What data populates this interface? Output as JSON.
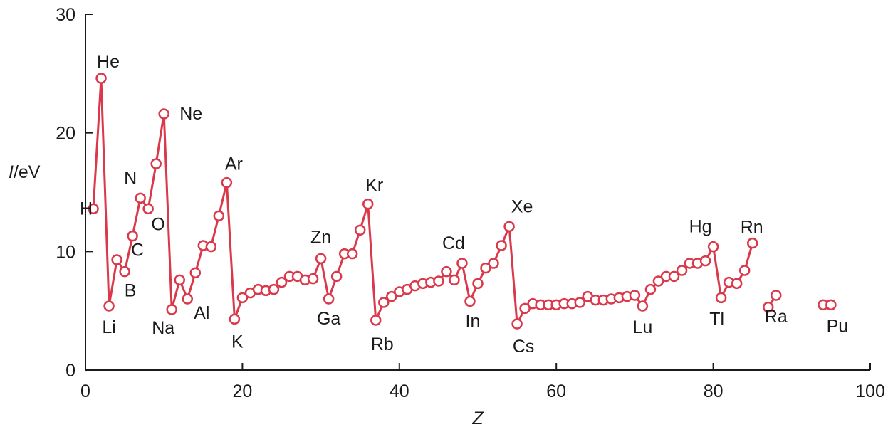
{
  "chart_data": {
    "type": "line",
    "xlabel": "Z",
    "ylabel": "I/eV",
    "xlim": [
      0,
      100
    ],
    "ylim": [
      0,
      30
    ],
    "xticks": [
      "0",
      "20",
      "40",
      "60",
      "80",
      "100"
    ],
    "yticks": [
      "0",
      "10",
      "20",
      "30"
    ],
    "grid": false,
    "colors": {
      "series": "#d9394a",
      "axis": "#1a1a1a",
      "marker_fill": "#ffffff"
    },
    "series": [
      {
        "segments": [
          [
            [
              1,
              13.6
            ],
            [
              2,
              24.6
            ],
            [
              3,
              5.4
            ],
            [
              4,
              9.3
            ],
            [
              5,
              8.3
            ],
            [
              6,
              11.3
            ],
            [
              7,
              14.5
            ],
            [
              8,
              13.6
            ],
            [
              9,
              17.4
            ],
            [
              10,
              21.6
            ],
            [
              11,
              5.1
            ],
            [
              12,
              7.6
            ],
            [
              13,
              6.0
            ],
            [
              14,
              8.2
            ],
            [
              15,
              10.5
            ],
            [
              16,
              10.4
            ],
            [
              17,
              13.0
            ],
            [
              18,
              15.8
            ],
            [
              19,
              4.3
            ],
            [
              20,
              6.1
            ],
            [
              21,
              6.5
            ],
            [
              22,
              6.8
            ],
            [
              23,
              6.7
            ],
            [
              24,
              6.8
            ],
            [
              25,
              7.4
            ],
            [
              26,
              7.9
            ],
            [
              27,
              7.9
            ],
            [
              28,
              7.6
            ],
            [
              29,
              7.7
            ],
            [
              30,
              9.4
            ],
            [
              31,
              6.0
            ],
            [
              32,
              7.9
            ],
            [
              33,
              9.8
            ],
            [
              34,
              9.8
            ],
            [
              35,
              11.8
            ],
            [
              36,
              14.0
            ],
            [
              37,
              4.2
            ],
            [
              38,
              5.7
            ],
            [
              39,
              6.2
            ],
            [
              40,
              6.6
            ],
            [
              41,
              6.8
            ],
            [
              42,
              7.1
            ],
            [
              43,
              7.3
            ],
            [
              44,
              7.4
            ],
            [
              45,
              7.5
            ],
            [
              46,
              8.3
            ],
            [
              47,
              7.6
            ],
            [
              48,
              9.0
            ],
            [
              49,
              5.8
            ],
            [
              50,
              7.3
            ],
            [
              51,
              8.6
            ],
            [
              52,
              9.0
            ],
            [
              53,
              10.5
            ],
            [
              54,
              12.1
            ],
            [
              55,
              3.9
            ],
            [
              56,
              5.2
            ],
            [
              57,
              5.6
            ],
            [
              58,
              5.5
            ],
            [
              59,
              5.5
            ],
            [
              60,
              5.5
            ],
            [
              61,
              5.6
            ],
            [
              62,
              5.6
            ],
            [
              63,
              5.7
            ],
            [
              64,
              6.2
            ],
            [
              65,
              5.9
            ],
            [
              66,
              5.9
            ],
            [
              67,
              6.0
            ],
            [
              68,
              6.1
            ],
            [
              69,
              6.2
            ],
            [
              70,
              6.3
            ],
            [
              71,
              5.4
            ],
            [
              72,
              6.8
            ],
            [
              73,
              7.5
            ],
            [
              74,
              7.9
            ],
            [
              75,
              7.9
            ],
            [
              76,
              8.4
            ],
            [
              77,
              9.0
            ],
            [
              78,
              9.0
            ],
            [
              79,
              9.2
            ],
            [
              80,
              10.4
            ],
            [
              81,
              6.1
            ],
            [
              82,
              7.4
            ],
            [
              83,
              7.3
            ],
            [
              84,
              8.4
            ],
            [
              85,
              10.7
            ]
          ],
          [
            [
              87,
              5.3
            ],
            [
              88,
              6.3
            ]
          ],
          [
            [
              94,
              5.5
            ],
            [
              95,
              5.5
            ]
          ]
        ]
      }
    ],
    "annotations": [
      {
        "text": "H",
        "z": 1
      },
      {
        "text": "He",
        "z": 2
      },
      {
        "text": "Li",
        "z": 3
      },
      {
        "text": "B",
        "z": 5
      },
      {
        "text": "C",
        "z": 6
      },
      {
        "text": "N",
        "z": 7
      },
      {
        "text": "O",
        "z": 8
      },
      {
        "text": "Ne",
        "z": 10
      },
      {
        "text": "Na",
        "z": 11
      },
      {
        "text": "Al",
        "z": 13
      },
      {
        "text": "Ar",
        "z": 18
      },
      {
        "text": "K",
        "z": 19
      },
      {
        "text": "Zn",
        "z": 30
      },
      {
        "text": "Ga",
        "z": 31
      },
      {
        "text": "Kr",
        "z": 36
      },
      {
        "text": "Rb",
        "z": 37
      },
      {
        "text": "Cd",
        "z": 48
      },
      {
        "text": "In",
        "z": 49
      },
      {
        "text": "Xe",
        "z": 54
      },
      {
        "text": "Cs",
        "z": 55
      },
      {
        "text": "Lu",
        "z": 71
      },
      {
        "text": "Hg",
        "z": 80
      },
      {
        "text": "Tl",
        "z": 81
      },
      {
        "text": "Rn",
        "z": 86
      },
      {
        "text": "Ra",
        "z": 88
      },
      {
        "text": "Pu",
        "z": 94
      }
    ]
  }
}
